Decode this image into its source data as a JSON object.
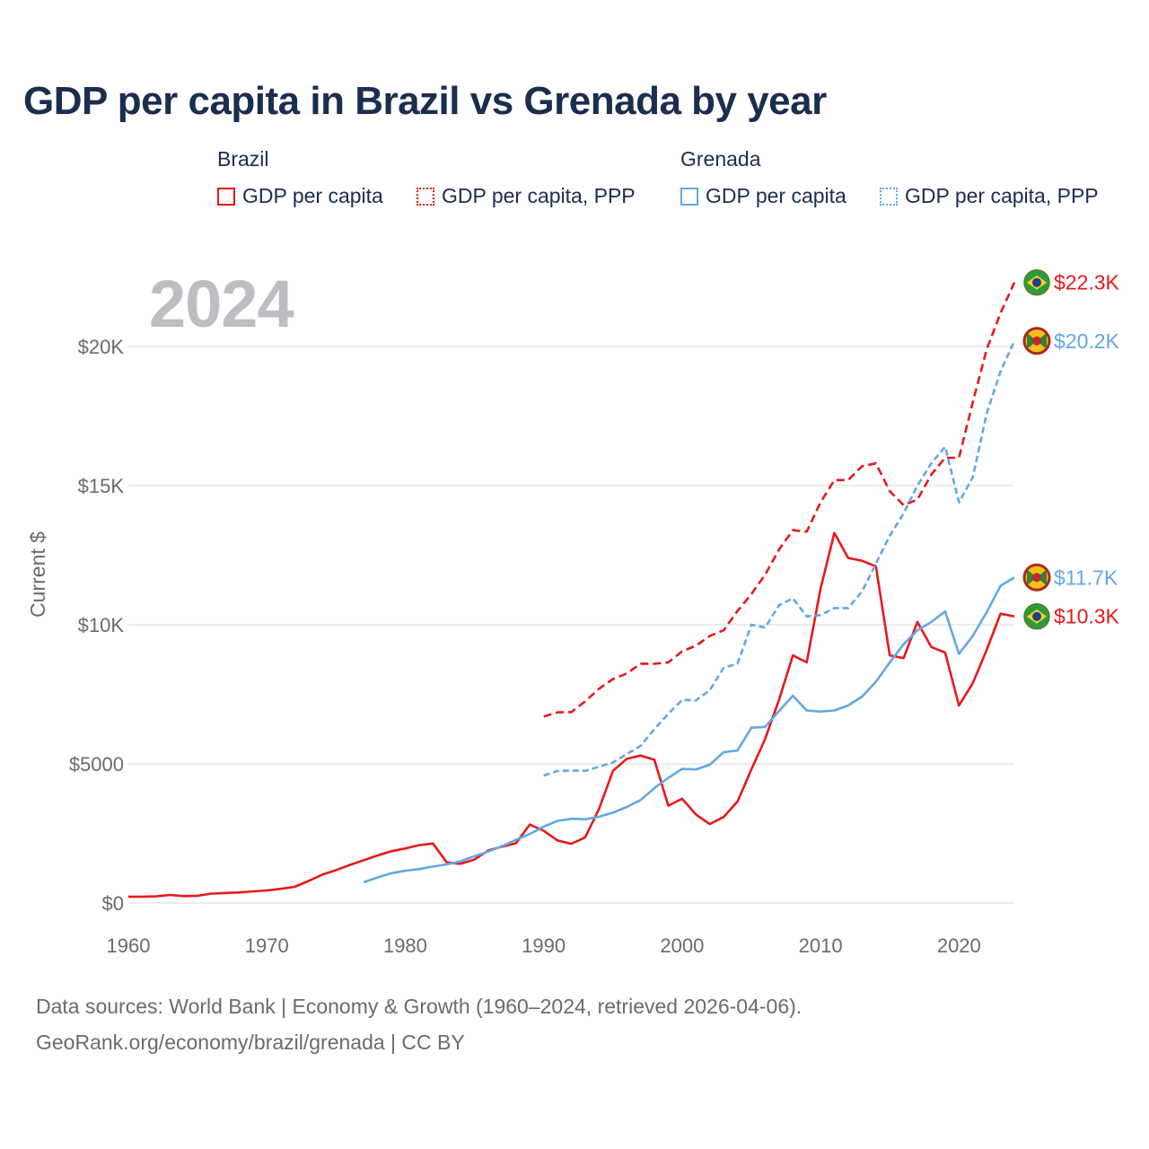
{
  "title": "GDP per capita in Brazil vs Grenada by year",
  "legend": {
    "groups": [
      {
        "name": "Brazil",
        "items": [
          "GDP per capita",
          "GDP per capita, PPP"
        ]
      },
      {
        "name": "Grenada",
        "items": [
          "GDP per capita",
          "GDP per capita, PPP"
        ]
      }
    ]
  },
  "year_label": "2024",
  "footer": {
    "line1": "Data sources: World Bank | Economy & Growth (1960–2024, retrieved 2026-04-06).",
    "line2": "GeoRank.org/economy/brazil/grenada | CC BY"
  },
  "colors": {
    "brazil": "#e8191b",
    "grenada": "#62a8e5",
    "grid": "#e6e6e6",
    "axis_text": "#6b6b6b"
  },
  "chart_data": {
    "type": "line",
    "title": "GDP per capita in Brazil vs Grenada by year",
    "xlabel": "",
    "ylabel": "Current $",
    "xlim": [
      1960,
      2024
    ],
    "ylim": [
      0,
      22500
    ],
    "x_ticks": [
      1960,
      1970,
      1980,
      1990,
      2000,
      2010,
      2020
    ],
    "x_tick_labels": [
      "1960",
      "1970",
      "1980",
      "1990",
      "2000",
      "2010",
      "2020"
    ],
    "y_ticks": [
      0,
      5000,
      10000,
      15000,
      20000
    ],
    "y_tick_labels": [
      "$0",
      "$5000",
      "$10K",
      "$15K",
      "$20K"
    ],
    "grid": true,
    "series": [
      {
        "name": "Brazil GDP per capita",
        "country": "brazil",
        "style": "solid",
        "end_label": "$10.3K",
        "x": [
          1960,
          1961,
          1962,
          1963,
          1964,
          1965,
          1966,
          1967,
          1968,
          1969,
          1970,
          1971,
          1972,
          1973,
          1974,
          1975,
          1976,
          1977,
          1978,
          1979,
          1980,
          1981,
          1982,
          1983,
          1984,
          1985,
          1986,
          1987,
          1988,
          1989,
          1990,
          1991,
          1992,
          1993,
          1994,
          1995,
          1996,
          1997,
          1998,
          1999,
          2000,
          2001,
          2002,
          2003,
          2004,
          2005,
          2006,
          2007,
          2008,
          2009,
          2010,
          2011,
          2012,
          2013,
          2014,
          2015,
          2016,
          2017,
          2018,
          2019,
          2020,
          2021,
          2022,
          2023,
          2024
        ],
        "y": [
          230,
          230,
          240,
          290,
          250,
          260,
          340,
          360,
          380,
          420,
          450,
          510,
          580,
          790,
          1020,
          1180,
          1370,
          1540,
          1710,
          1860,
          1960,
          2080,
          2140,
          1460,
          1410,
          1560,
          1890,
          2030,
          2150,
          2820,
          2600,
          2250,
          2130,
          2360,
          3380,
          4750,
          5180,
          5300,
          5150,
          3500,
          3750,
          3180,
          2840,
          3090,
          3650,
          4800,
          5900,
          7300,
          8900,
          8650,
          11300,
          13300,
          12400,
          12300,
          12100,
          8900,
          8800,
          10100,
          9200,
          9000,
          7100,
          7900,
          9100,
          10400,
          10300
        ]
      },
      {
        "name": "Brazil GDP per capita, PPP",
        "country": "brazil",
        "style": "dashed",
        "end_label": "$22.3K",
        "x": [
          1990,
          1991,
          1992,
          1993,
          1994,
          1995,
          1996,
          1997,
          1998,
          1999,
          2000,
          2001,
          2002,
          2003,
          2004,
          2005,
          2006,
          2007,
          2008,
          2009,
          2010,
          2011,
          2012,
          2013,
          2014,
          2015,
          2016,
          2017,
          2018,
          2019,
          2020,
          2021,
          2022,
          2023,
          2024
        ],
        "y": [
          6700,
          6850,
          6860,
          7250,
          7700,
          8050,
          8250,
          8600,
          8600,
          8650,
          9050,
          9250,
          9600,
          9800,
          10500,
          11100,
          11800,
          12700,
          13400,
          13350,
          14400,
          15200,
          15200,
          15700,
          15800,
          14800,
          14300,
          14500,
          15400,
          16000,
          16000,
          18000,
          19900,
          21200,
          22300
        ]
      },
      {
        "name": "Grenada GDP per capita",
        "country": "grenada",
        "style": "solid",
        "end_label": "$11.7K",
        "x": [
          1977,
          1978,
          1979,
          1980,
          1981,
          1982,
          1983,
          1984,
          1985,
          1986,
          1987,
          1988,
          1989,
          1990,
          1991,
          1992,
          1993,
          1994,
          1995,
          1996,
          1997,
          1998,
          1999,
          2000,
          2001,
          2002,
          2003,
          2004,
          2005,
          2006,
          2007,
          2008,
          2009,
          2010,
          2011,
          2012,
          2013,
          2014,
          2015,
          2016,
          2017,
          2018,
          2019,
          2020,
          2021,
          2022,
          2023,
          2024
        ],
        "y": [
          750,
          920,
          1070,
          1160,
          1220,
          1310,
          1390,
          1500,
          1680,
          1850,
          2050,
          2270,
          2480,
          2750,
          2950,
          3030,
          3010,
          3100,
          3250,
          3450,
          3700,
          4130,
          4500,
          4820,
          4800,
          4970,
          5420,
          5480,
          6300,
          6330,
          6900,
          7450,
          6920,
          6880,
          6920,
          7100,
          7420,
          7950,
          8650,
          9300,
          9800,
          10100,
          10480,
          8950,
          9600,
          10450,
          11400,
          11700
        ]
      },
      {
        "name": "Grenada GDP per capita, PPP",
        "country": "grenada",
        "style": "dotted",
        "end_label": "$20.2K",
        "x": [
          1990,
          1991,
          1992,
          1993,
          1994,
          1995,
          1996,
          1997,
          1998,
          1999,
          2000,
          2001,
          2002,
          2003,
          2004,
          2005,
          2006,
          2007,
          2008,
          2009,
          2010,
          2011,
          2012,
          2013,
          2014,
          2015,
          2016,
          2017,
          2018,
          2019,
          2020,
          2021,
          2022,
          2023,
          2024
        ],
        "y": [
          4580,
          4750,
          4760,
          4750,
          4900,
          5050,
          5350,
          5650,
          6250,
          6800,
          7300,
          7280,
          7650,
          8450,
          8600,
          10000,
          9900,
          10700,
          10950,
          10300,
          10350,
          10600,
          10600,
          11200,
          12200,
          13200,
          14000,
          15000,
          15800,
          16400,
          14400,
          15300,
          17600,
          19100,
          20200
        ]
      }
    ]
  }
}
